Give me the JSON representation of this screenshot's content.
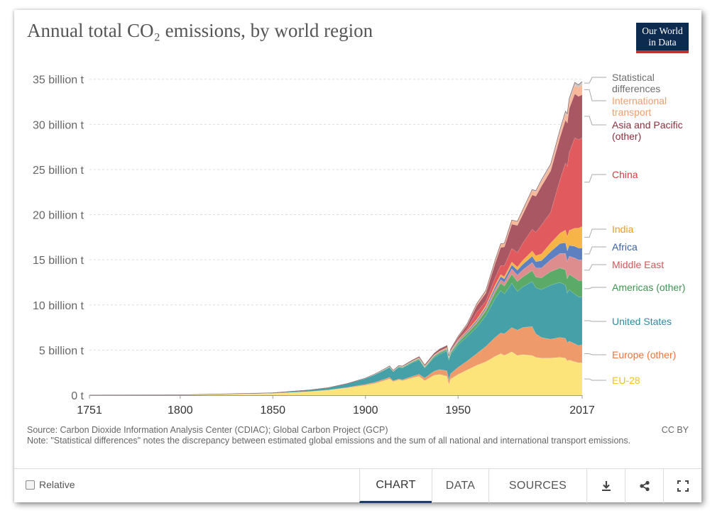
{
  "title": "Annual total CO₂ emissions, by world region",
  "logo": {
    "line1": "Our World",
    "line2": "in Data"
  },
  "source": "Source: Carbon Dioxide Information Analysis Center (CDIAC); Global Carbon Project (GCP)",
  "note": "Note: \"Statistical differences\" notes the discrepancy between estimated global emissions and the sum of all national and international transport emissions.",
  "license": "CC BY",
  "footer": {
    "relative_label": "Relative",
    "tabs": [
      "CHART",
      "DATA",
      "SOURCES"
    ],
    "icons": [
      "download-icon",
      "share-icon",
      "fullscreen-icon"
    ]
  },
  "chart_data": {
    "type": "area",
    "stacked": true,
    "title": "Annual total CO₂ emissions, by world region",
    "x_ticks": [
      1751,
      1800,
      1850,
      1900,
      1950,
      2017
    ],
    "x_tick_labels": [
      "1751",
      "1800",
      "1850",
      "1900",
      "1950",
      "2017"
    ],
    "y_ticks": [
      0,
      5,
      10,
      15,
      20,
      25,
      30,
      35
    ],
    "y_tick_labels": [
      "0 t",
      "5 billion t",
      "10 billion t",
      "15 billion t",
      "20 billion t",
      "25 billion t",
      "30 billion t",
      "35 billion t"
    ],
    "xlim": [
      1751,
      2017
    ],
    "ylim": [
      0,
      36
    ],
    "grid": "horizontal dashed",
    "legend": "right (labels at series ends)",
    "x": [
      1751,
      1800,
      1850,
      1870,
      1880,
      1890,
      1900,
      1905,
      1910,
      1913,
      1915,
      1918,
      1920,
      1925,
      1929,
      1932,
      1937,
      1940,
      1944,
      1945,
      1946,
      1950,
      1955,
      1960,
      1965,
      1970,
      1973,
      1975,
      1979,
      1982,
      1985,
      1990,
      1992,
      1995,
      2000,
      2005,
      2008,
      2009,
      2010,
      2013,
      2015,
      2017
    ],
    "series": [
      {
        "name": "EU-28",
        "color": "#fce37a",
        "values": [
          0.01,
          0.03,
          0.2,
          0.4,
          0.55,
          0.8,
          1.1,
          1.3,
          1.6,
          1.8,
          1.5,
          1.7,
          1.6,
          1.9,
          2.1,
          1.6,
          2.2,
          2.3,
          2.1,
          1.2,
          1.8,
          2.3,
          2.8,
          3.3,
          3.7,
          4.3,
          4.6,
          4.4,
          4.8,
          4.4,
          4.5,
          4.4,
          4.2,
          4.1,
          4.1,
          4.2,
          4.1,
          3.8,
          3.9,
          3.7,
          3.6,
          3.6
        ]
      },
      {
        "name": "Europe (other)",
        "color": "#ee9a6b",
        "values": [
          0,
          0,
          0.01,
          0.02,
          0.03,
          0.06,
          0.1,
          0.12,
          0.15,
          0.18,
          0.1,
          0.1,
          0.12,
          0.17,
          0.22,
          0.3,
          0.45,
          0.55,
          0.6,
          0.5,
          0.6,
          0.8,
          1.0,
          1.3,
          1.7,
          2.1,
          2.3,
          2.4,
          2.7,
          2.8,
          3.0,
          3.2,
          2.6,
          2.3,
          2.1,
          2.2,
          2.2,
          2.0,
          2.1,
          2.0,
          1.9,
          2.0
        ]
      },
      {
        "name": "United States",
        "color": "#45a0a8",
        "values": [
          0,
          0,
          0.05,
          0.15,
          0.25,
          0.4,
          0.65,
          0.85,
          1.0,
          1.1,
          1.0,
          1.3,
          1.3,
          1.5,
          1.6,
          1.1,
          1.5,
          1.7,
          2.2,
          2.2,
          2.1,
          2.5,
          2.7,
          2.9,
          3.4,
          4.3,
          4.7,
          4.4,
          4.9,
          4.3,
          4.5,
          5.0,
          5.1,
          5.3,
          6.0,
          6.1,
          5.9,
          5.5,
          5.7,
          5.5,
          5.4,
          5.3
        ]
      },
      {
        "name": "Americas (other)",
        "color": "#5caa67",
        "values": [
          0,
          0,
          0,
          0,
          0,
          0.01,
          0.02,
          0.03,
          0.05,
          0.06,
          0.06,
          0.07,
          0.08,
          0.1,
          0.12,
          0.1,
          0.14,
          0.15,
          0.17,
          0.18,
          0.2,
          0.25,
          0.35,
          0.45,
          0.55,
          0.7,
          0.8,
          0.9,
          1.0,
          1.1,
          1.1,
          1.2,
          1.2,
          1.3,
          1.5,
          1.6,
          1.7,
          1.6,
          1.7,
          1.8,
          1.8,
          1.8
        ]
      },
      {
        "name": "Middle East",
        "color": "#dd8d8e",
        "values": [
          0,
          0,
          0,
          0,
          0,
          0,
          0,
          0,
          0,
          0,
          0,
          0,
          0,
          0,
          0.01,
          0.01,
          0.02,
          0.02,
          0.03,
          0.03,
          0.04,
          0.06,
          0.1,
          0.15,
          0.2,
          0.3,
          0.4,
          0.4,
          0.6,
          0.7,
          0.8,
          0.9,
          1.0,
          1.1,
          1.3,
          1.6,
          1.8,
          1.9,
          2.0,
          2.2,
          2.3,
          2.3
        ]
      },
      {
        "name": "Africa",
        "color": "#5d80c1",
        "values": [
          0,
          0,
          0,
          0,
          0,
          0,
          0,
          0,
          0.01,
          0.01,
          0.01,
          0.02,
          0.02,
          0.03,
          0.04,
          0.04,
          0.05,
          0.06,
          0.07,
          0.07,
          0.08,
          0.1,
          0.13,
          0.16,
          0.2,
          0.3,
          0.35,
          0.38,
          0.45,
          0.55,
          0.6,
          0.7,
          0.7,
          0.8,
          0.9,
          1.1,
          1.2,
          1.2,
          1.2,
          1.3,
          1.3,
          1.3
        ]
      },
      {
        "name": "India",
        "color": "#f7b547",
        "values": [
          0,
          0,
          0,
          0,
          0,
          0,
          0.01,
          0.02,
          0.03,
          0.04,
          0.04,
          0.04,
          0.04,
          0.05,
          0.05,
          0.05,
          0.06,
          0.07,
          0.07,
          0.07,
          0.07,
          0.07,
          0.1,
          0.12,
          0.17,
          0.2,
          0.22,
          0.25,
          0.3,
          0.35,
          0.45,
          0.58,
          0.65,
          0.75,
          0.95,
          1.15,
          1.4,
          1.55,
          1.65,
          2.0,
          2.2,
          2.4
        ]
      },
      {
        "name": "China",
        "color": "#e05a5e",
        "values": [
          0,
          0,
          0,
          0,
          0,
          0,
          0,
          0,
          0,
          0,
          0,
          0,
          0,
          0.01,
          0.02,
          0.03,
          0.04,
          0.05,
          0.05,
          0.04,
          0.05,
          0.08,
          0.2,
          0.8,
          0.5,
          0.8,
          1.0,
          1.2,
          1.5,
          1.6,
          1.9,
          2.4,
          2.6,
          3.2,
          3.4,
          5.9,
          7.4,
          7.8,
          8.6,
          10.0,
          9.8,
          9.8
        ]
      },
      {
        "name": "Asia and Pacific (other)",
        "color": "#a95863",
        "values": [
          0,
          0,
          0,
          0,
          0,
          0,
          0.01,
          0.02,
          0.03,
          0.04,
          0.04,
          0.05,
          0.06,
          0.08,
          0.1,
          0.1,
          0.15,
          0.2,
          0.2,
          0.05,
          0.15,
          0.25,
          0.4,
          0.7,
          0.9,
          1.6,
          2.0,
          2.1,
          2.7,
          3.0,
          3.2,
          3.8,
          4.0,
          4.3,
          4.6,
          4.7,
          4.8,
          4.8,
          4.9,
          4.9,
          4.8,
          4.8
        ]
      },
      {
        "name": "International transport",
        "color": "#f6b99a",
        "values": [
          0,
          0,
          0,
          0,
          0,
          0,
          0,
          0,
          0,
          0,
          0,
          0,
          0,
          0,
          0,
          0,
          0,
          0,
          0,
          0,
          0,
          0.1,
          0.15,
          0.2,
          0.25,
          0.3,
          0.35,
          0.35,
          0.4,
          0.4,
          0.45,
          0.5,
          0.5,
          0.55,
          0.6,
          0.65,
          0.75,
          0.8,
          0.85,
          0.95,
          1.0,
          1.1
        ]
      },
      {
        "name": "Statistical differences",
        "color": "#c9c6c6",
        "values": [
          0,
          0,
          0,
          0,
          0,
          0,
          0,
          0,
          0,
          0,
          0,
          0,
          0,
          0,
          0,
          0,
          0,
          0,
          0,
          0,
          0,
          0,
          0,
          0.02,
          0.03,
          0.05,
          0.05,
          0.05,
          0.05,
          0.06,
          0.08,
          0.1,
          0.1,
          0.15,
          0.15,
          0.2,
          0.2,
          0.25,
          0.25,
          0.3,
          0.3,
          0.35
        ]
      }
    ],
    "series_labels": [
      {
        "series": "Statistical differences",
        "lines": [
          "Statistical",
          "differences"
        ],
        "color": "#6e6e6e"
      },
      {
        "series": "International transport",
        "lines": [
          "International",
          "transport"
        ],
        "color": "#f29c6c"
      },
      {
        "series": "Asia and Pacific (other)",
        "lines": [
          "Asia and Pacific",
          "(other)"
        ],
        "color": "#8c2f3c"
      },
      {
        "series": "China",
        "lines": [
          "China"
        ],
        "color": "#d43c43"
      },
      {
        "series": "India",
        "lines": [
          "India"
        ],
        "color": "#ef9b1c"
      },
      {
        "series": "Africa",
        "lines": [
          "Africa"
        ],
        "color": "#3a5fa8"
      },
      {
        "series": "Middle East",
        "lines": [
          "Middle East"
        ],
        "color": "#d0585b"
      },
      {
        "series": "Americas (other)",
        "lines": [
          "Americas (other)"
        ],
        "color": "#3f9450"
      },
      {
        "series": "United States",
        "lines": [
          "United States"
        ],
        "color": "#2e8aa0"
      },
      {
        "series": "Europe (other)",
        "lines": [
          "Europe (other)"
        ],
        "color": "#e8753a"
      },
      {
        "series": "EU-28",
        "lines": [
          "EU-28"
        ],
        "color": "#f0c419"
      }
    ]
  }
}
